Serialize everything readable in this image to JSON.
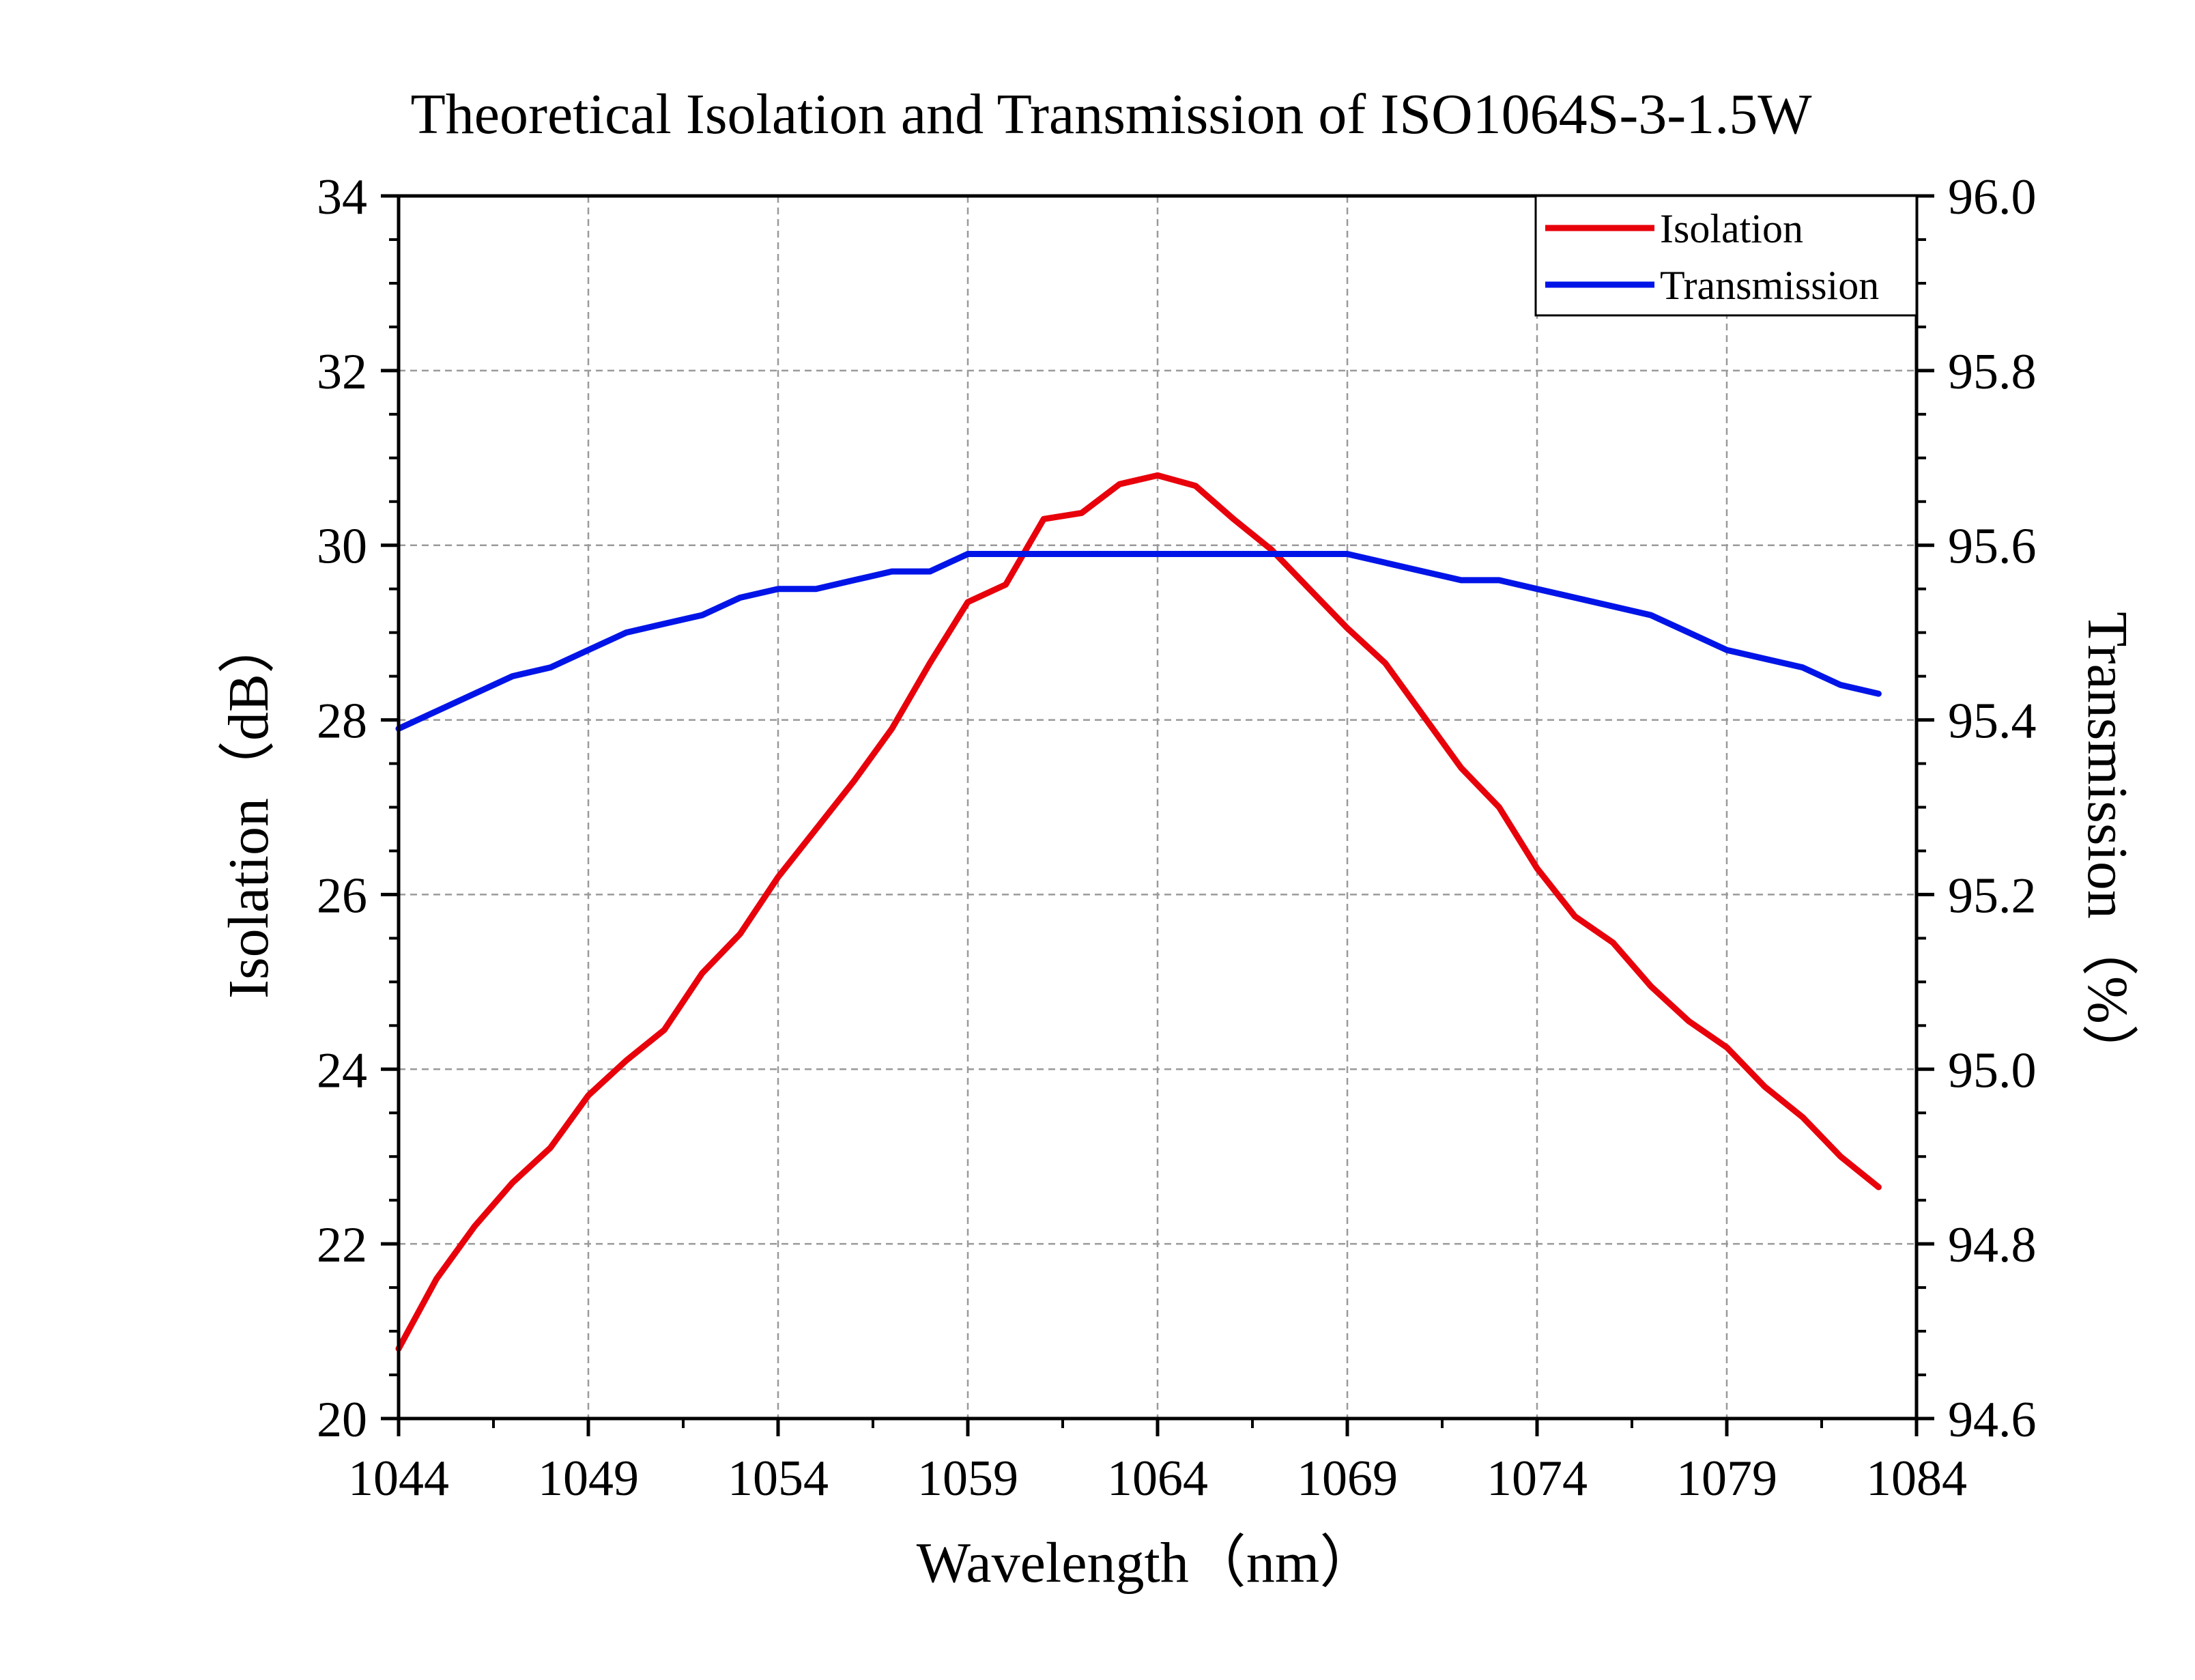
{
  "chart_data": {
    "type": "line",
    "title": "Theoretical Isolation and Transmission of ISO1064S-3-1.5W",
    "xlabel": "Wavelength（nm）",
    "ylabel_left": "Isolation（dB）",
    "ylabel_right": "Transmission（%）",
    "xlim": [
      1044,
      1084
    ],
    "ylim_left": [
      20,
      34
    ],
    "ylim_right": [
      94.6,
      96.0
    ],
    "x_ticks": [
      "1044",
      "1049",
      "1054",
      "1059",
      "1064",
      "1069",
      "1074",
      "1079",
      "1084"
    ],
    "y_left_ticks": [
      "20",
      "22",
      "24",
      "26",
      "28",
      "30",
      "32",
      "34"
    ],
    "y_right_ticks": [
      "94.6",
      "94.8",
      "95.0",
      "95.2",
      "95.4",
      "95.6",
      "95.8",
      "96.0"
    ],
    "grid": true,
    "legend_position": "top-right",
    "series": [
      {
        "name": "Isolation",
        "axis": "left",
        "color": "#e8000b",
        "x": [
          1044,
          1045,
          1046,
          1047,
          1048,
          1049,
          1050,
          1051,
          1052,
          1053,
          1054,
          1055,
          1056,
          1057,
          1058,
          1059,
          1060,
          1061,
          1062,
          1063,
          1064,
          1065,
          1066,
          1067,
          1068,
          1069,
          1070,
          1071,
          1072,
          1073,
          1074,
          1075,
          1076,
          1077,
          1078,
          1079,
          1080,
          1081,
          1082,
          1083
        ],
        "values": [
          20.8,
          21.6,
          22.2,
          22.7,
          23.1,
          23.7,
          24.1,
          24.45,
          25.1,
          25.55,
          26.2,
          26.75,
          27.3,
          27.9,
          28.65,
          29.35,
          29.55,
          30.3,
          30.37,
          30.7,
          30.8,
          30.68,
          30.3,
          29.95,
          29.5,
          29.05,
          28.65,
          28.05,
          27.45,
          27.0,
          26.3,
          25.75,
          25.45,
          24.95,
          24.55,
          24.25,
          23.8,
          23.45,
          23.0,
          22.65
        ]
      },
      {
        "name": "Transmission",
        "axis": "right",
        "color": "#0014e8",
        "x": [
          1044,
          1045,
          1046,
          1047,
          1048,
          1049,
          1050,
          1051,
          1052,
          1053,
          1054,
          1055,
          1056,
          1057,
          1058,
          1059,
          1060,
          1061,
          1062,
          1063,
          1064,
          1065,
          1066,
          1067,
          1068,
          1069,
          1070,
          1071,
          1072,
          1073,
          1074,
          1075,
          1076,
          1077,
          1078,
          1079,
          1080,
          1081,
          1082,
          1083
        ],
        "values": [
          95.39,
          95.41,
          95.43,
          95.45,
          95.46,
          95.48,
          95.5,
          95.51,
          95.52,
          95.54,
          95.55,
          95.55,
          95.56,
          95.57,
          95.57,
          95.59,
          95.59,
          95.59,
          95.59,
          95.59,
          95.59,
          95.59,
          95.59,
          95.59,
          95.59,
          95.59,
          95.58,
          95.57,
          95.56,
          95.56,
          95.55,
          95.54,
          95.53,
          95.52,
          95.5,
          95.48,
          95.47,
          95.46,
          95.44,
          95.43
        ]
      }
    ]
  }
}
